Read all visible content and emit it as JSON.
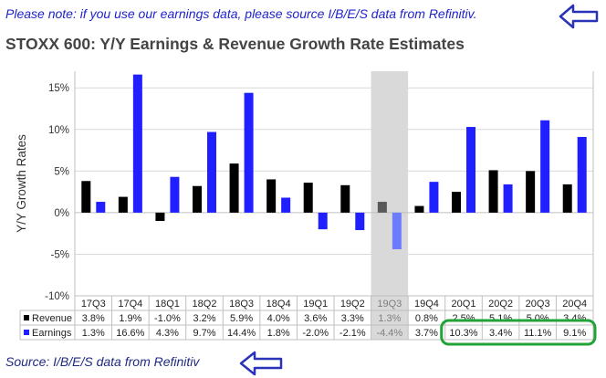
{
  "header": {
    "note": "Please note: if you use our earnings data, please source I/B/E/S data from Refinitiv.",
    "title": "STOXX 600: Y/Y Earnings & Revenue Growth Rate Estimates"
  },
  "footer": {
    "source": "Source: I/B/E/S data from Refinitiv"
  },
  "colors": {
    "revenue": "#000000",
    "earnings": "#1f1fff",
    "highlight_column": "#d9d9d9",
    "highlight_box": "#21a33a",
    "arrow": "#2a33b8",
    "highlight_text": "#7f7f7f"
  },
  "chart_data": {
    "type": "bar",
    "ylabel": "Y/Y Growth Rates",
    "ylim": [
      -10,
      17
    ],
    "yticks": [
      -10,
      -5,
      0,
      5,
      10,
      15
    ],
    "ytick_labels": [
      "-10%",
      "-5%",
      "0%",
      "5%",
      "10%",
      "15%"
    ],
    "categories": [
      "17Q3",
      "17Q4",
      "18Q1",
      "18Q2",
      "18Q3",
      "18Q4",
      "19Q1",
      "19Q2",
      "19Q3",
      "19Q4",
      "20Q1",
      "20Q2",
      "20Q3",
      "20Q4"
    ],
    "highlighted_category": "19Q3",
    "boxed_categories": [
      "20Q1",
      "20Q2",
      "20Q3",
      "20Q4"
    ],
    "series": [
      {
        "name": "Revenue",
        "values": [
          3.8,
          1.9,
          -1.0,
          3.2,
          5.9,
          4.0,
          3.6,
          3.3,
          1.3,
          0.8,
          2.5,
          5.1,
          5.0,
          3.4
        ],
        "labels": [
          "3.8%",
          "1.9%",
          "-1.0%",
          "3.2%",
          "5.9%",
          "4.0%",
          "3.6%",
          "3.3%",
          "1.3%",
          "0.8%",
          "2.5%",
          "5.1%",
          "5.0%",
          "3.4%"
        ]
      },
      {
        "name": "Earnings",
        "values": [
          1.3,
          16.6,
          4.3,
          9.7,
          14.4,
          1.8,
          -2.0,
          -2.1,
          -4.4,
          3.7,
          10.3,
          3.4,
          11.1,
          9.1
        ],
        "labels": [
          "1.3%",
          "16.6%",
          "4.3%",
          "9.7%",
          "14.4%",
          "1.8%",
          "-2.0%",
          "-2.1%",
          "-4.4%",
          "3.7%",
          "10.3%",
          "3.4%",
          "11.1%",
          "9.1%"
        ]
      }
    ]
  }
}
